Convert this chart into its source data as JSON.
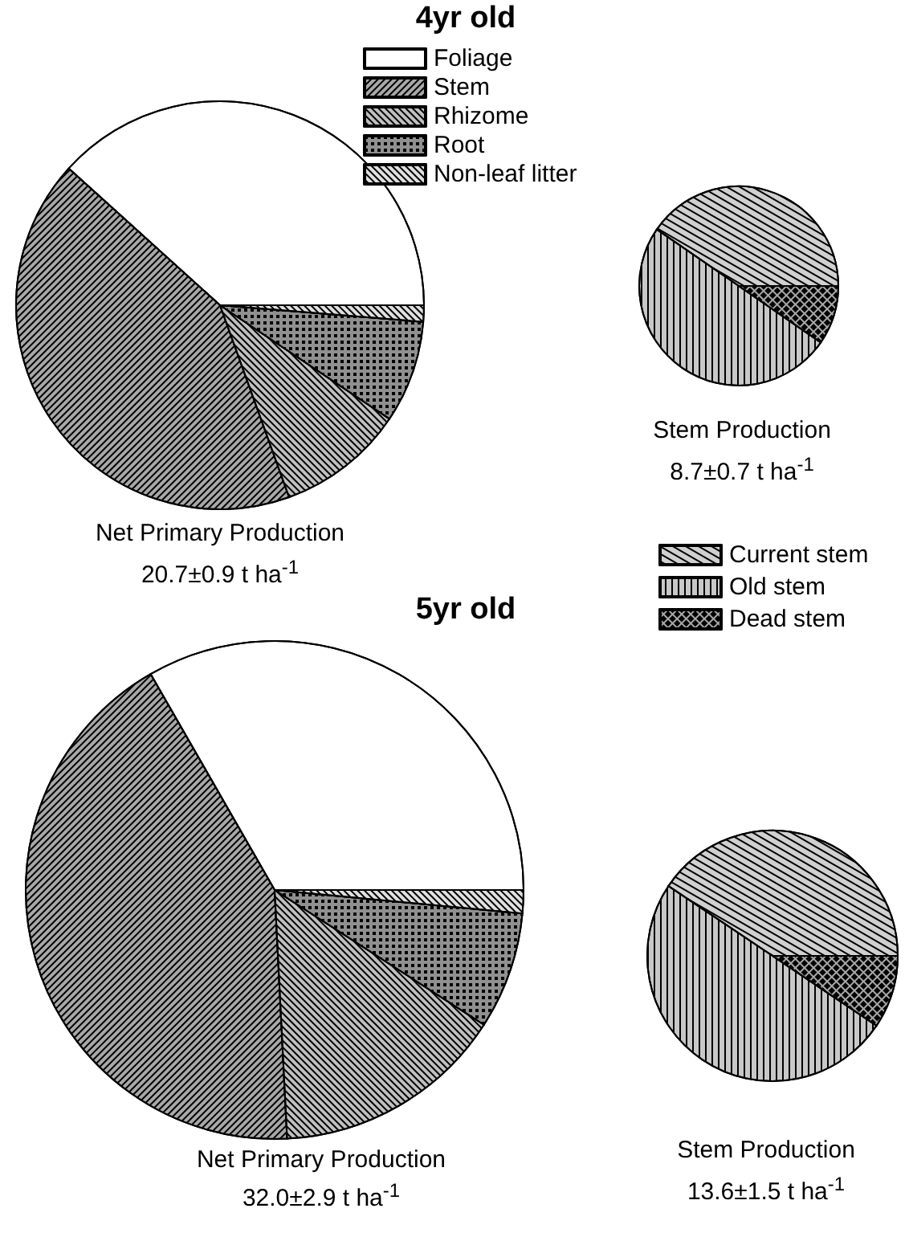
{
  "chart_data": [
    {
      "type": "pie",
      "categories": [
        "Foliage",
        "Stem",
        "Rhizome",
        "Root",
        "Non-leaf litter"
      ],
      "colors": [
        "#ffffff",
        "#a8a8a8",
        "#c0c0c0",
        "#909090",
        "#e0e0e0"
      ],
      "legend": "top right",
      "series": [
        {
          "name": "4yr old",
          "values": [
            38.3,
            42.2,
            10.1,
            8.1,
            1.3
          ]
        },
        {
          "name": "5yr old",
          "values": [
            33.3,
            42.5,
            15.1,
            7.6,
            1.5
          ]
        }
      ],
      "annotations": [
        "Net Primary Production",
        "20.7±0.9 t ha$^{-1}$",
        "Net Primary Production",
        "32.0±2.9 t ha$^{-1}$"
      ]
    },
    {
      "type": "pie",
      "categories": [
        "Current stem",
        "Old stem",
        "Dead stem"
      ],
      "colors": [
        "#d0d0d0",
        "#c8c8c8",
        "#a8a8a8"
      ],
      "legend": "right",
      "series": [
        {
          "values": [
            40.4,
            50.0,
            9.6
          ]
        },
        {
          "values": [
            40.6,
            50.0,
            9.4
          ]
        }
      ],
      "annotations": [
        "Stem Production",
        "8.7±0.7 t ha$^{-1}$",
        "Stem Production",
        "13.6±1.5 t ha$^{-1}$"
      ]
    }
  ]
}
